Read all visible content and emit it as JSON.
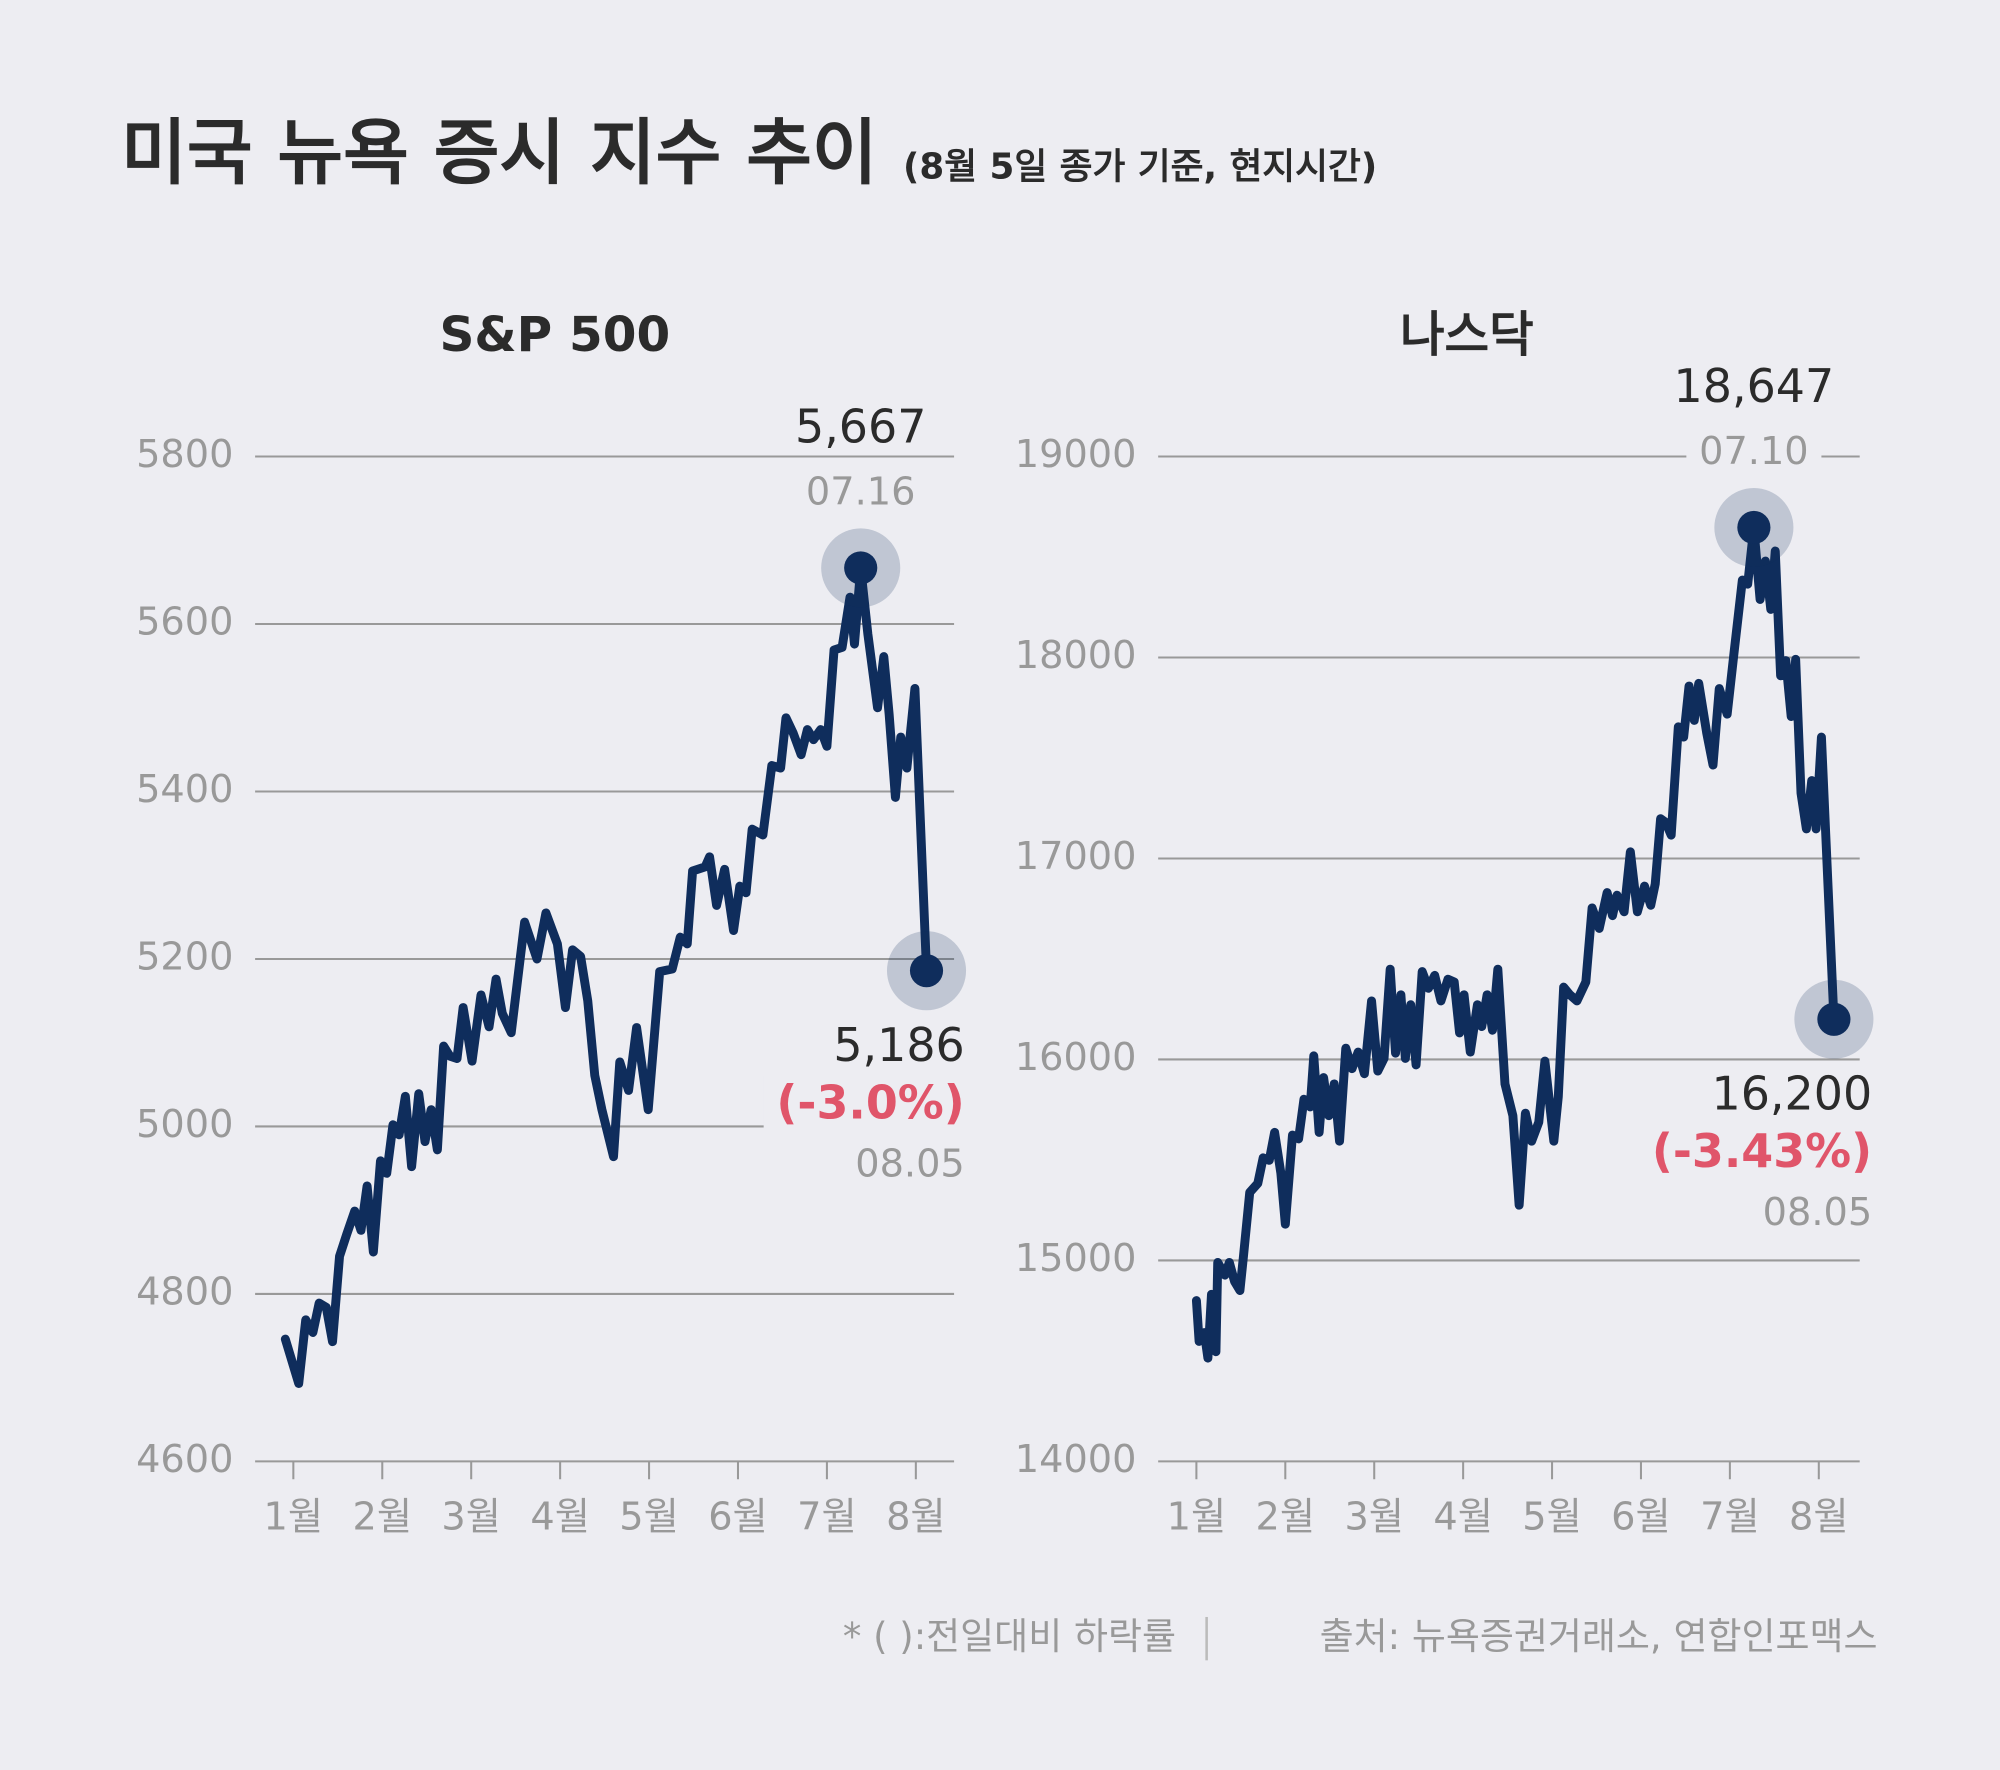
{
  "title": "미국 뉴욕 증시 지수 추이",
  "subtitle": "(8월 5일 종가 기준, 현지시간)",
  "footer": {
    "note": "* ( ):전일대비 하락률",
    "source": "출처: 뉴욕증권거래소, 연합인포맥스"
  },
  "chart_data": [
    {
      "type": "line",
      "title": "S&P 500",
      "color": "#0f2d5c",
      "x": [
        0.91,
        1.06,
        1.14,
        1.22,
        1.29,
        1.37,
        1.44,
        1.52,
        1.6,
        1.69,
        1.76,
        1.83,
        1.9,
        1.98,
        2.05,
        2.12,
        2.19,
        2.26,
        2.33,
        2.41,
        2.48,
        2.55,
        2.62,
        2.69,
        2.76,
        2.84,
        2.91,
        3.01,
        3.11,
        3.2,
        3.28,
        3.35,
        3.45,
        3.6,
        3.74,
        3.84,
        3.97,
        4.06,
        4.14,
        4.23,
        4.31,
        4.39,
        4.47,
        4.6,
        4.67,
        4.77,
        4.86,
        4.99,
        5.12,
        5.26,
        5.35,
        5.43,
        5.49,
        5.63,
        5.68,
        5.76,
        5.85,
        5.95,
        6.02,
        6.09,
        6.16,
        6.28,
        6.38,
        6.48,
        6.54,
        6.62,
        6.71,
        6.78,
        6.85,
        6.93,
        7.0,
        7.08,
        7.17,
        7.26,
        7.31,
        7.38,
        7.46,
        7.57,
        7.64,
        7.7,
        7.77,
        7.83,
        7.9,
        7.99,
        8.12
      ],
      "values": [
        4746,
        4693,
        4769,
        4754,
        4789,
        4784,
        4743,
        4845,
        4871,
        4899,
        4876,
        4929,
        4850,
        4959,
        4944,
        5002,
        4990,
        5036,
        4952,
        5039,
        4982,
        5020,
        4972,
        5096,
        5084,
        5081,
        5142,
        5078,
        5157,
        5119,
        5176,
        5135,
        5112,
        5244,
        5200,
        5255,
        5218,
        5142,
        5211,
        5203,
        5150,
        5061,
        5020,
        4964,
        5077,
        5043,
        5118,
        5020,
        5185,
        5188,
        5226,
        5218,
        5305,
        5310,
        5322,
        5264,
        5307,
        5234,
        5287,
        5279,
        5355,
        5348,
        5431,
        5428,
        5488,
        5470,
        5444,
        5474,
        5462,
        5474,
        5454,
        5569,
        5572,
        5632,
        5576,
        5667,
        5588,
        5500,
        5561,
        5492,
        5393,
        5465,
        5428,
        5523,
        5186
      ],
      "xlim": [
        0.57,
        8.43
      ],
      "xticks": [
        {
          "value": 1,
          "label": "1월"
        },
        {
          "value": 2,
          "label": "2월"
        },
        {
          "value": 3,
          "label": "3월"
        },
        {
          "value": 4,
          "label": "4월"
        },
        {
          "value": 5,
          "label": "5월"
        },
        {
          "value": 6,
          "label": "6월"
        },
        {
          "value": 7,
          "label": "7월"
        },
        {
          "value": 8,
          "label": "8월"
        }
      ],
      "ylim": [
        4600,
        5800
      ],
      "yticks": [
        4600,
        4800,
        5000,
        5200,
        5400,
        5600,
        5800
      ],
      "grid": true,
      "highlights": [
        {
          "value_label": "5,667",
          "date": "07.16"
        },
        {
          "value_label": "5,186",
          "change": "(-3.0%)",
          "date": "08.05"
        }
      ]
    },
    {
      "type": "line",
      "title": "나스닥",
      "color": "#0f2d5c",
      "x": [
        1.0,
        1.03,
        1.09,
        1.13,
        1.17,
        1.22,
        1.24,
        1.32,
        1.37,
        1.43,
        1.49,
        1.53,
        1.6,
        1.69,
        1.75,
        1.82,
        1.88,
        1.95,
        2.0,
        2.08,
        2.15,
        2.21,
        2.28,
        2.32,
        2.38,
        2.43,
        2.49,
        2.55,
        2.61,
        2.68,
        2.75,
        2.82,
        2.89,
        2.97,
        3.04,
        3.11,
        3.18,
        3.24,
        3.3,
        3.35,
        3.41,
        3.47,
        3.54,
        3.61,
        3.68,
        3.75,
        3.83,
        3.9,
        3.96,
        4.01,
        4.08,
        4.16,
        4.21,
        4.27,
        4.33,
        4.39,
        4.47,
        4.56,
        4.63,
        4.7,
        4.77,
        4.85,
        4.92,
        5.02,
        5.07,
        5.13,
        5.2,
        5.28,
        5.38,
        5.45,
        5.53,
        5.62,
        5.68,
        5.73,
        5.81,
        5.88,
        5.96,
        6.04,
        6.11,
        6.16,
        6.22,
        6.28,
        6.34,
        6.42,
        6.48,
        6.54,
        6.6,
        6.65,
        6.74,
        6.81,
        6.88,
        6.97,
        7.05,
        7.14,
        7.2,
        7.27,
        7.34,
        7.4,
        7.46,
        7.51,
        7.57,
        7.63,
        7.69,
        7.74,
        7.8,
        7.86,
        7.92,
        7.97,
        8.03,
        8.17
      ],
      "values": [
        14800,
        14597,
        14641,
        14514,
        14831,
        14546,
        14990,
        14927,
        14990,
        14895,
        14850,
        15022,
        15339,
        15383,
        15510,
        15498,
        15637,
        15434,
        15180,
        15624,
        15605,
        15802,
        15764,
        16018,
        15637,
        15910,
        15720,
        15878,
        15593,
        16056,
        15954,
        16037,
        15929,
        16291,
        15942,
        16005,
        16449,
        16031,
        16322,
        16005,
        16272,
        15973,
        16437,
        16354,
        16418,
        16291,
        16399,
        16386,
        16132,
        16322,
        16037,
        16272,
        16164,
        16322,
        16145,
        16449,
        15878,
        15720,
        15275,
        15732,
        15593,
        15688,
        15992,
        15593,
        15815,
        16360,
        16322,
        16291,
        16386,
        16754,
        16652,
        16830,
        16716,
        16817,
        16735,
        17033,
        16735,
        16862,
        16767,
        16874,
        17198,
        17179,
        17116,
        17655,
        17604,
        17858,
        17687,
        17871,
        17623,
        17465,
        17845,
        17718,
        18036,
        18385,
        18365,
        18647,
        18289,
        18480,
        18239,
        18530,
        17909,
        17985,
        17706,
        17991,
        17325,
        17147,
        17388,
        17147,
        17604,
        16200
      ],
      "xlim": [
        0.57,
        8.46
      ],
      "xticks": [
        {
          "value": 1,
          "label": "1월"
        },
        {
          "value": 2,
          "label": "2월"
        },
        {
          "value": 3,
          "label": "3월"
        },
        {
          "value": 4,
          "label": "4월"
        },
        {
          "value": 5,
          "label": "5월"
        },
        {
          "value": 6,
          "label": "6월"
        },
        {
          "value": 7,
          "label": "7월"
        },
        {
          "value": 8,
          "label": "8월"
        }
      ],
      "ylim": [
        14000,
        19000
      ],
      "yticks": [
        14000,
        15000,
        16000,
        17000,
        18000,
        19000
      ],
      "grid": true,
      "highlights": [
        {
          "value_label": "18,647",
          "date": "07.10"
        },
        {
          "value_label": "16,200",
          "change": "(-3.43%)",
          "date": "08.05"
        }
      ]
    }
  ]
}
